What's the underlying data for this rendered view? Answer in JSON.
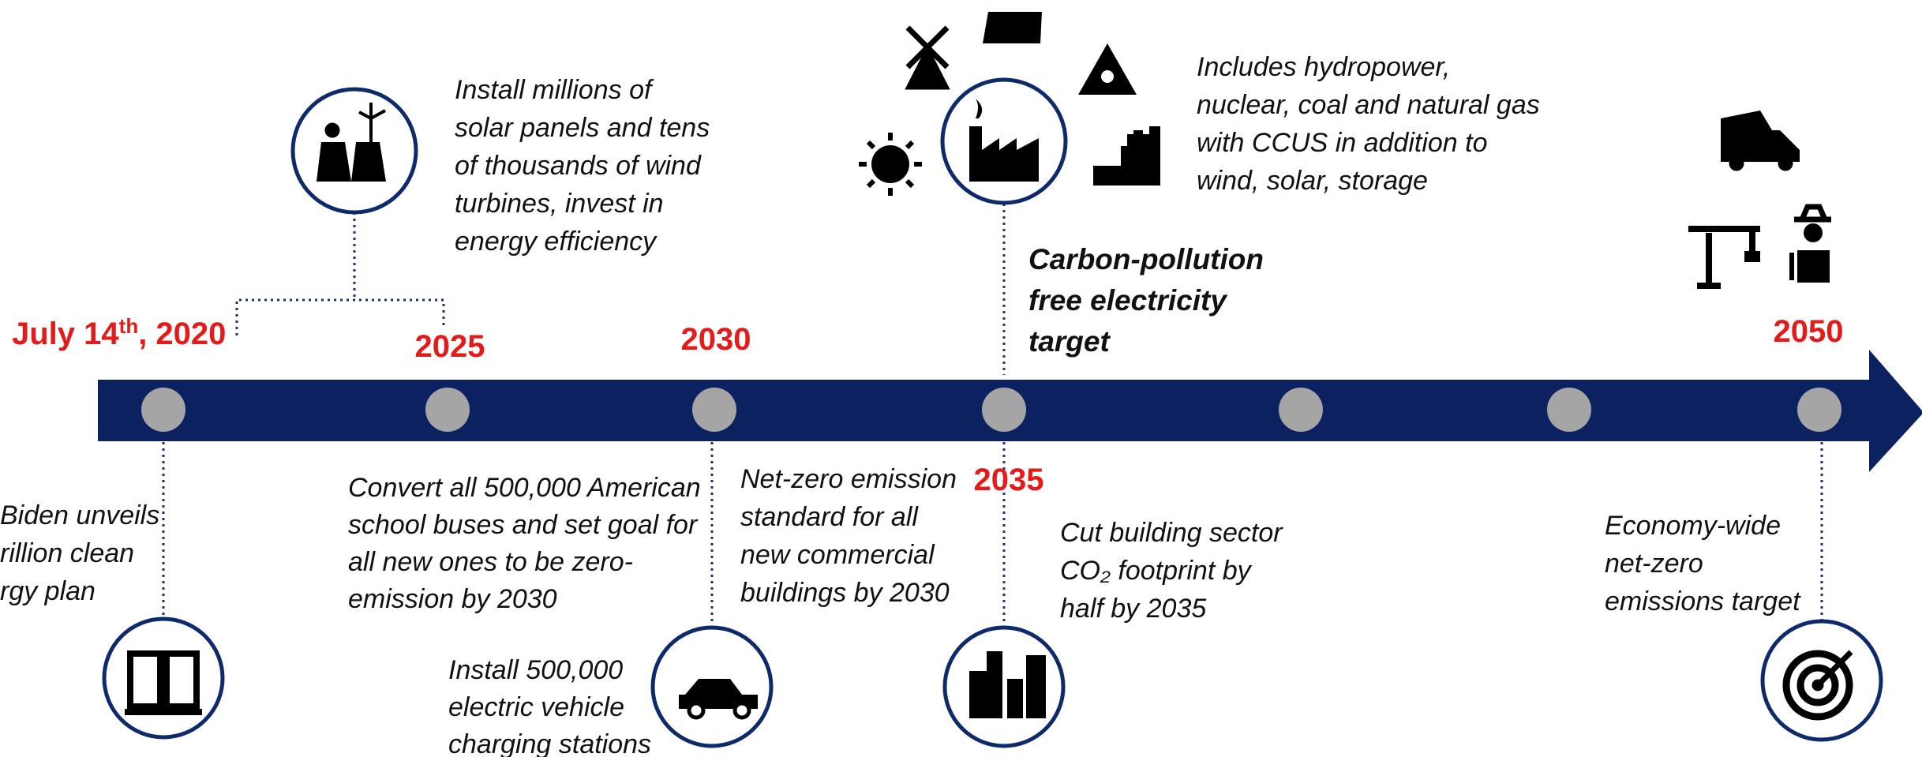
{
  "dates": {
    "start": {
      "text": "July 14",
      "sup": "th",
      "rest": ", 2020"
    },
    "y2025": "2025",
    "y2030": "2030",
    "y2035": "2035",
    "y2050": "2050"
  },
  "notes": {
    "biden": [
      "Biden unveils",
      "rillion clean",
      "rgy plan"
    ],
    "solar": [
      "Install millions of",
      "solar panels and tens",
      "of thousands of wind",
      "turbines, invest in",
      "energy efficiency"
    ],
    "grid_mix": [
      "Includes hydropower,",
      "nuclear, coal and natural gas",
      "with CCUS in addition to",
      "wind, solar, storage"
    ],
    "carbon_target": [
      "Carbon-pollution",
      "free electricity",
      "target"
    ],
    "buses": [
      "Convert all 500,000 American",
      "school buses and set goal for",
      "all new ones to be zero-",
      "emission by 2030"
    ],
    "chargers": [
      "Install 500,000",
      "electric vehicle",
      "charging stations"
    ],
    "buildings_standard": [
      "Net-zero emission",
      "standard for all",
      "new commercial",
      "buildings by 2030"
    ],
    "building_footprint": [
      "Cut building sector",
      "CO₂ footprint by",
      "half by 2035"
    ],
    "net_zero": [
      "Economy-wide",
      "net-zero",
      "emissions target"
    ]
  }
}
